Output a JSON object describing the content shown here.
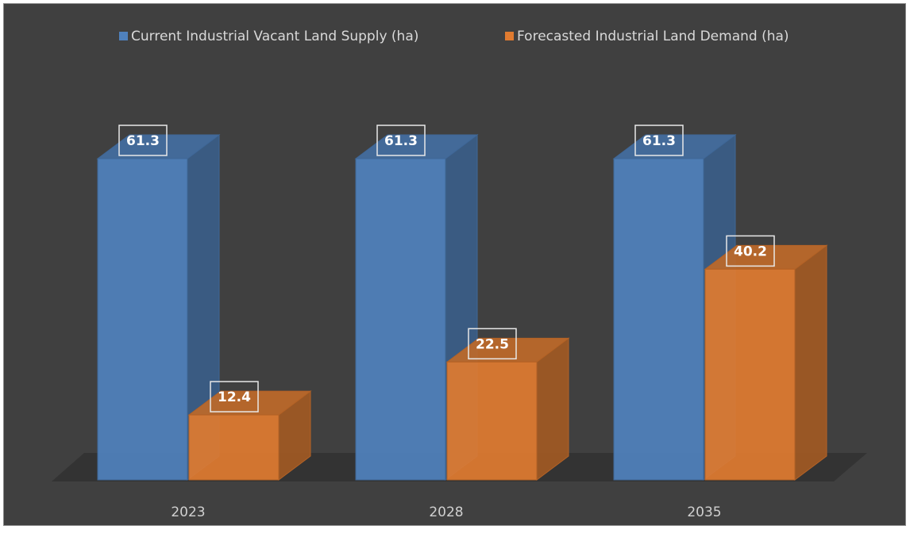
{
  "chart_data": {
    "type": "bar3d",
    "categories": [
      "2023",
      "2028",
      "2035"
    ],
    "series": [
      {
        "name": "Current Industrial Vacant Land Supply (ha)",
        "color": "#4f81bd",
        "values": [
          61.3,
          61.3,
          61.3
        ]
      },
      {
        "name": "Forecasted Industrial Land Demand (ha)",
        "color": "#e07b30",
        "values": [
          12.4,
          22.5,
          40.2
        ]
      }
    ],
    "legend": "top",
    "data_labels": true
  }
}
